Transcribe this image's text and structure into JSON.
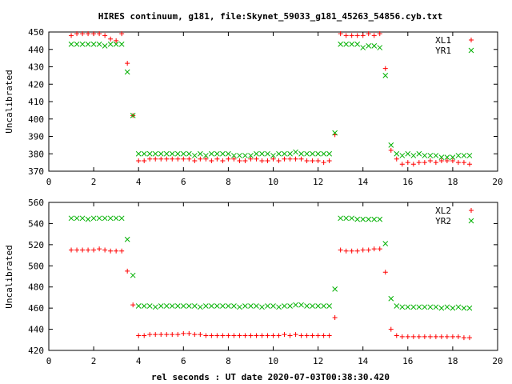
{
  "title": "HIRES continuum, g181, file:Skynet_59033_g181_45263_54856.cyb.txt",
  "xlabel": "rel seconds : UT date 2020-07-03T00:38:30.420",
  "colors": {
    "red": "#ff0000",
    "green": "#00b000"
  },
  "chart_data": [
    {
      "type": "scatter",
      "ylabel": "Uncalibrated",
      "xlim": [
        0,
        20
      ],
      "ylim": [
        370,
        450
      ],
      "xticks": [
        "0",
        "2",
        "4",
        "6",
        "8",
        "10",
        "12",
        "14",
        "16",
        "18",
        "20"
      ],
      "yticks": [
        "370",
        "380",
        "390",
        "400",
        "410",
        "420",
        "430",
        "440",
        "450"
      ],
      "legend_position": "top-right",
      "grid": false,
      "series": [
        {
          "name": "XL1",
          "marker": "plus",
          "color": "#ff0000",
          "x": [
            1.0,
            1.25,
            1.5,
            1.75,
            2.0,
            2.25,
            2.5,
            2.75,
            3.0,
            3.25,
            3.5,
            3.75,
            4.0,
            4.25,
            4.5,
            4.75,
            5.0,
            5.25,
            5.5,
            5.75,
            6.0,
            6.25,
            6.5,
            6.75,
            7.0,
            7.25,
            7.5,
            7.75,
            8.0,
            8.25,
            8.5,
            8.75,
            9.0,
            9.25,
            9.5,
            9.75,
            10.0,
            10.25,
            10.5,
            10.75,
            11.0,
            11.25,
            11.5,
            11.75,
            12.0,
            12.25,
            12.5,
            12.75,
            13.0,
            13.25,
            13.5,
            13.75,
            14.0,
            14.25,
            14.5,
            14.75,
            15.0,
            15.25,
            15.5,
            15.75,
            16.0,
            16.25,
            16.5,
            16.75,
            17.0,
            17.25,
            17.5,
            17.75,
            18.0,
            18.25,
            18.5,
            18.75
          ],
          "y": [
            448,
            449,
            449,
            449,
            449,
            449,
            448,
            446,
            445,
            449,
            432,
            402,
            376,
            376,
            377,
            377,
            377,
            377,
            377,
            377,
            377,
            377,
            376,
            377,
            377,
            376,
            377,
            376,
            377,
            377,
            376,
            376,
            377,
            377,
            376,
            376,
            377,
            376,
            377,
            377,
            377,
            377,
            376,
            376,
            376,
            375,
            376,
            391,
            449,
            448,
            448,
            448,
            448,
            449,
            448,
            449,
            429,
            382,
            377,
            374,
            375,
            374,
            375,
            375,
            376,
            375,
            376,
            376,
            376,
            375,
            375,
            374
          ]
        },
        {
          "name": "YR1",
          "marker": "cross",
          "color": "#00b000",
          "x": [
            1.0,
            1.25,
            1.5,
            1.75,
            2.0,
            2.25,
            2.5,
            2.75,
            3.0,
            3.25,
            3.5,
            3.75,
            4.0,
            4.25,
            4.5,
            4.75,
            5.0,
            5.25,
            5.5,
            5.75,
            6.0,
            6.25,
            6.5,
            6.75,
            7.0,
            7.25,
            7.5,
            7.75,
            8.0,
            8.25,
            8.5,
            8.75,
            9.0,
            9.25,
            9.5,
            9.75,
            10.0,
            10.25,
            10.5,
            10.75,
            11.0,
            11.25,
            11.5,
            11.75,
            12.0,
            12.25,
            12.5,
            12.75,
            13.0,
            13.25,
            13.5,
            13.75,
            14.0,
            14.25,
            14.5,
            14.75,
            15.0,
            15.25,
            15.5,
            15.75,
            16.0,
            16.25,
            16.5,
            16.75,
            17.0,
            17.25,
            17.5,
            17.75,
            18.0,
            18.25,
            18.5,
            18.75
          ],
          "y": [
            443,
            443,
            443,
            443,
            443,
            443,
            442,
            443,
            443,
            443,
            427,
            402,
            380,
            380,
            380,
            380,
            380,
            380,
            380,
            380,
            380,
            380,
            379,
            380,
            379,
            380,
            380,
            380,
            380,
            379,
            379,
            379,
            379,
            380,
            380,
            380,
            379,
            380,
            380,
            380,
            381,
            380,
            380,
            380,
            380,
            380,
            380,
            392,
            443,
            443,
            443,
            443,
            441,
            442,
            442,
            441,
            425,
            385,
            380,
            379,
            380,
            379,
            380,
            379,
            379,
            379,
            378,
            378,
            378,
            379,
            379,
            379
          ]
        }
      ]
    },
    {
      "type": "scatter",
      "ylabel": "Uncalibrated",
      "xlim": [
        0,
        20
      ],
      "ylim": [
        420,
        560
      ],
      "xticks": [
        "0",
        "2",
        "4",
        "6",
        "8",
        "10",
        "12",
        "14",
        "16",
        "18",
        "20"
      ],
      "yticks": [
        "420",
        "440",
        "460",
        "480",
        "500",
        "520",
        "540",
        "560"
      ],
      "legend_position": "top-right",
      "grid": false,
      "series": [
        {
          "name": "XL2",
          "marker": "plus",
          "color": "#ff0000",
          "x": [
            1.0,
            1.25,
            1.5,
            1.75,
            2.0,
            2.25,
            2.5,
            2.75,
            3.0,
            3.25,
            3.5,
            3.75,
            4.0,
            4.25,
            4.5,
            4.75,
            5.0,
            5.25,
            5.5,
            5.75,
            6.0,
            6.25,
            6.5,
            6.75,
            7.0,
            7.25,
            7.5,
            7.75,
            8.0,
            8.25,
            8.5,
            8.75,
            9.0,
            9.25,
            9.5,
            9.75,
            10.0,
            10.25,
            10.5,
            10.75,
            11.0,
            11.25,
            11.5,
            11.75,
            12.0,
            12.25,
            12.5,
            12.75,
            13.0,
            13.25,
            13.5,
            13.75,
            14.0,
            14.25,
            14.5,
            14.75,
            15.0,
            15.25,
            15.5,
            15.75,
            16.0,
            16.25,
            16.5,
            16.75,
            17.0,
            17.25,
            17.5,
            17.75,
            18.0,
            18.25,
            18.5,
            18.75
          ],
          "y": [
            515,
            515,
            515,
            515,
            515,
            516,
            515,
            514,
            514,
            514,
            495,
            463,
            434,
            434,
            435,
            435,
            435,
            435,
            435,
            435,
            436,
            436,
            435,
            435,
            434,
            434,
            434,
            434,
            434,
            434,
            434,
            434,
            434,
            434,
            434,
            434,
            434,
            434,
            435,
            434,
            435,
            434,
            434,
            434,
            434,
            434,
            434,
            451,
            515,
            514,
            514,
            514,
            515,
            515,
            516,
            516,
            494,
            440,
            434,
            433,
            433,
            433,
            433,
            433,
            433,
            433,
            433,
            433,
            433,
            433,
            432,
            432
          ]
        },
        {
          "name": "YR2",
          "marker": "cross",
          "color": "#00b000",
          "x": [
            1.0,
            1.25,
            1.5,
            1.75,
            2.0,
            2.25,
            2.5,
            2.75,
            3.0,
            3.25,
            3.5,
            3.75,
            4.0,
            4.25,
            4.5,
            4.75,
            5.0,
            5.25,
            5.5,
            5.75,
            6.0,
            6.25,
            6.5,
            6.75,
            7.0,
            7.25,
            7.5,
            7.75,
            8.0,
            8.25,
            8.5,
            8.75,
            9.0,
            9.25,
            9.5,
            9.75,
            10.0,
            10.25,
            10.5,
            10.75,
            11.0,
            11.25,
            11.5,
            11.75,
            12.0,
            12.25,
            12.5,
            12.75,
            13.0,
            13.25,
            13.5,
            13.75,
            14.0,
            14.25,
            14.5,
            14.75,
            15.0,
            15.25,
            15.5,
            15.75,
            16.0,
            16.25,
            16.5,
            16.75,
            17.0,
            17.25,
            17.5,
            17.75,
            18.0,
            18.25,
            18.5,
            18.75
          ],
          "y": [
            545,
            545,
            545,
            544,
            545,
            545,
            545,
            545,
            545,
            545,
            525,
            491,
            462,
            462,
            462,
            461,
            462,
            462,
            462,
            462,
            462,
            462,
            462,
            461,
            462,
            462,
            462,
            462,
            462,
            462,
            461,
            462,
            462,
            462,
            461,
            462,
            462,
            461,
            462,
            462,
            463,
            463,
            462,
            462,
            462,
            462,
            462,
            478,
            545,
            545,
            545,
            544,
            544,
            544,
            544,
            544,
            521,
            469,
            462,
            461,
            461,
            461,
            461,
            461,
            461,
            461,
            460,
            461,
            460,
            461,
            460,
            460
          ]
        }
      ]
    }
  ]
}
